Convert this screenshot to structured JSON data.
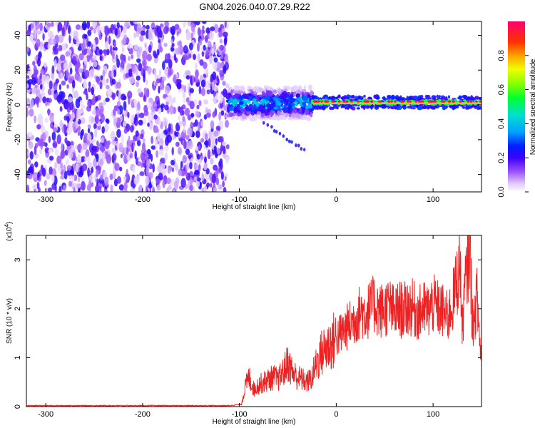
{
  "title": "GN04.2026.040.07.29.R22",
  "colors": {
    "snr_line": "#ee2222",
    "colormap": [
      "#ffffff",
      "#c8a8ff",
      "#8040ff",
      "#4000ff",
      "#0000ff",
      "#00a0ff",
      "#00e0c0",
      "#00ff00",
      "#c0ff00",
      "#ffff00",
      "#ff8000",
      "#ff0000",
      "#ff0080"
    ]
  },
  "chart_data": [
    {
      "id": "spectrogram",
      "type": "heatmap",
      "title": "",
      "xlabel": "Height of straight line (km)",
      "ylabel": "Frequency (Hz)",
      "xlim": [
        -320,
        150
      ],
      "ylim": [
        -50,
        48
      ],
      "xticks": [
        -300,
        -200,
        -100,
        0,
        100
      ],
      "xtick_labels": [
        "-300",
        "-200",
        "-100",
        "0",
        "100"
      ],
      "yticks": [
        -40,
        -20,
        0,
        20,
        40
      ],
      "ytick_labels": [
        "-40",
        "-20",
        "0",
        "20",
        "40"
      ],
      "regions": [
        {
          "x_from": -320,
          "x_to": -112,
          "freq_from": -50,
          "freq_to": 48,
          "amplitude": 0.2,
          "description": "broadband noise"
        },
        {
          "x_from": -112,
          "x_to": -25,
          "freq_from": -8,
          "freq_to": 10,
          "amplitude": 0.45,
          "description": "scattered echoes near 0 Hz"
        },
        {
          "x_from": -25,
          "x_to": 150,
          "freq_from": -2,
          "freq_to": 5,
          "amplitude": 0.95,
          "description": "narrow band near 1 Hz"
        }
      ],
      "colorbar": {
        "label": "Normalized spectral amplitude",
        "range": [
          0,
          1
        ],
        "ticks": [
          0.0,
          0.2,
          0.4,
          0.6,
          0.8
        ],
        "tick_labels": [
          "0.0",
          "0.2",
          "0.4",
          "0.6",
          "0.8"
        ]
      }
    },
    {
      "id": "snr",
      "type": "line",
      "title": "",
      "xlabel": "Height of straight line (km)",
      "ylabel": "SNR (10 * v/v)",
      "scale_label": "(x10",
      "scale_exponent": "4",
      "scale_close": ")",
      "xlim": [
        -320,
        150
      ],
      "ylim": [
        0,
        3.5
      ],
      "xticks": [
        -300,
        -200,
        -100,
        0,
        100
      ],
      "xtick_labels": [
        "-300",
        "-200",
        "-100",
        "0",
        "100"
      ],
      "yticks": [
        0,
        1,
        2,
        3
      ],
      "ytick_labels": [
        "0",
        "1",
        "2",
        "3"
      ],
      "series": [
        {
          "name": "SNR",
          "x": [
            -320,
            -300,
            -250,
            -200,
            -150,
            -110,
            -98,
            -94,
            -90,
            -85,
            -80,
            -75,
            -70,
            -65,
            -60,
            -55,
            -50,
            -45,
            -40,
            -35,
            -30,
            -25,
            -20,
            -15,
            -10,
            -5,
            0,
            5,
            10,
            15,
            20,
            25,
            30,
            35,
            40,
            45,
            50,
            55,
            60,
            65,
            70,
            75,
            80,
            85,
            90,
            95,
            100,
            105,
            110,
            115,
            120,
            125,
            128,
            130,
            132,
            135,
            138,
            140,
            142,
            145,
            148,
            150
          ],
          "y": [
            0.02,
            0.02,
            0.02,
            0.02,
            0.02,
            0.02,
            0.05,
            0.4,
            0.6,
            0.35,
            0.45,
            0.5,
            0.55,
            0.6,
            0.55,
            0.7,
            0.9,
            0.7,
            0.6,
            0.55,
            0.5,
            0.6,
            0.9,
            1.1,
            1.2,
            1.3,
            1.4,
            1.5,
            1.6,
            1.7,
            1.8,
            1.95,
            1.9,
            2.0,
            2.1,
            1.95,
            2.0,
            2.05,
            1.9,
            2.0,
            1.95,
            2.05,
            2.0,
            1.9,
            2.0,
            1.95,
            2.1,
            2.0,
            1.95,
            1.8,
            2.1,
            2.6,
            3.0,
            1.5,
            2.2,
            2.8,
            3.4,
            2.0,
            1.6,
            2.3,
            1.4,
            1.0
          ]
        }
      ]
    }
  ]
}
